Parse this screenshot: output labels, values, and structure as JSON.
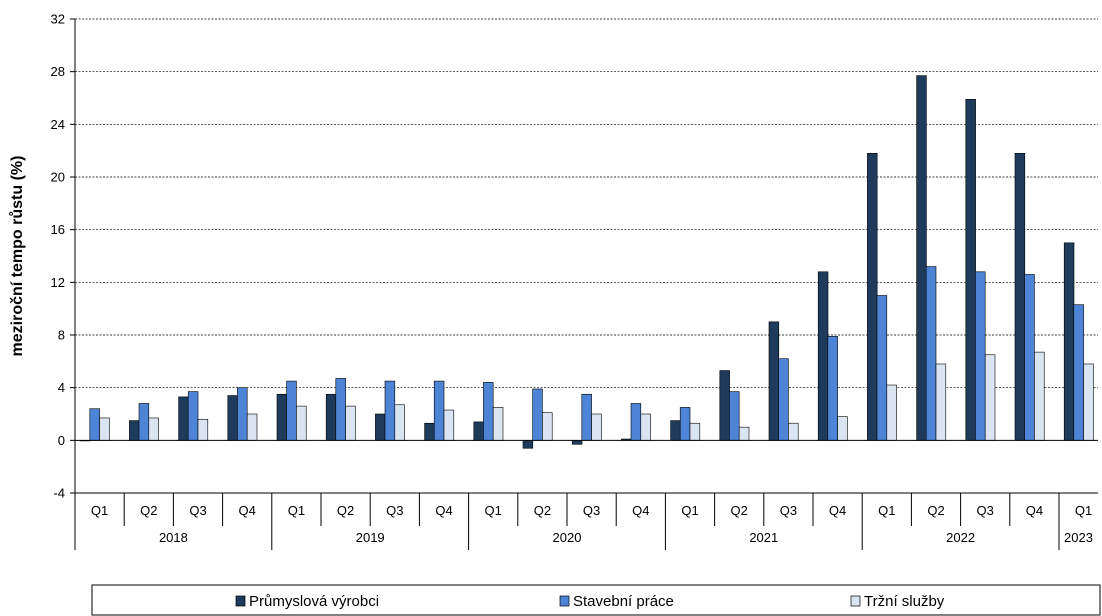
{
  "chart_data": {
    "type": "bar",
    "title": "",
    "xlabel": "",
    "ylabel": "meziroční tempo růstu (%)",
    "ylim": [
      -4,
      32
    ],
    "yticks": [
      -4,
      0,
      4,
      8,
      12,
      16,
      20,
      24,
      28,
      32
    ],
    "grid": true,
    "legend_position": "bottom",
    "categories": [
      "Q1",
      "Q2",
      "Q3",
      "Q4",
      "Q1",
      "Q2",
      "Q3",
      "Q4",
      "Q1",
      "Q2",
      "Q3",
      "Q4",
      "Q1",
      "Q2",
      "Q3",
      "Q4",
      "Q1",
      "Q2",
      "Q3",
      "Q4",
      "Q1"
    ],
    "years": [
      {
        "label": "2018",
        "count": 4
      },
      {
        "label": "2019",
        "count": 4
      },
      {
        "label": "2020",
        "count": 4
      },
      {
        "label": "2021",
        "count": 4
      },
      {
        "label": "2022",
        "count": 4
      },
      {
        "label": "2023",
        "count": 1
      }
    ],
    "series": [
      {
        "name": "Průmyslová výrobci",
        "legend_label": "Průmyslová výrobci",
        "color": "#1f3b5c",
        "values": [
          0.0,
          1.5,
          3.3,
          3.4,
          3.5,
          3.5,
          2.0,
          1.3,
          1.4,
          -0.6,
          -0.3,
          0.1,
          1.5,
          5.3,
          9.0,
          12.8,
          21.8,
          27.7,
          25.9,
          21.8,
          15.0
        ]
      },
      {
        "name": "Stavební práce",
        "legend_label": "Stavební práce",
        "color": "#4d84d6",
        "values": [
          2.4,
          2.8,
          3.7,
          4.0,
          4.5,
          4.7,
          4.5,
          4.5,
          4.4,
          3.9,
          3.5,
          2.8,
          2.5,
          3.7,
          6.2,
          7.9,
          11.0,
          13.2,
          12.8,
          12.6,
          10.3
        ]
      },
      {
        "name": "Tržní služby",
        "legend_label": "Tržní služby",
        "color": "#dbe4f1",
        "values": [
          1.7,
          1.7,
          1.6,
          2.0,
          2.6,
          2.6,
          2.7,
          2.3,
          2.5,
          2.1,
          2.0,
          2.0,
          1.3,
          1.0,
          1.3,
          1.8,
          4.2,
          5.8,
          6.5,
          6.7,
          5.8
        ]
      }
    ]
  }
}
